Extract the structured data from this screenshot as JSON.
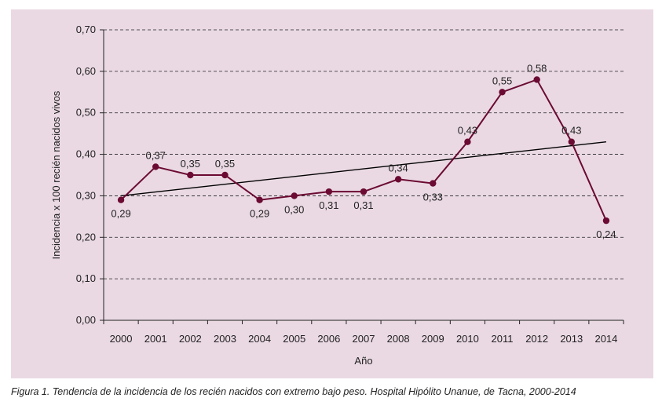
{
  "chart_data": {
    "type": "line",
    "title": "",
    "xlabel": "Año",
    "ylabel": "Incidencia x 100 recién nacidos vivos",
    "x": [
      "2000",
      "2001",
      "2002",
      "2003",
      "2004",
      "2005",
      "2006",
      "2007",
      "2008",
      "2009",
      "2010",
      "2011",
      "2012",
      "2013",
      "2014"
    ],
    "series": [
      {
        "name": "",
        "values": [
          0.29,
          0.37,
          0.35,
          0.35,
          0.29,
          0.3,
          0.31,
          0.31,
          0.34,
          0.33,
          0.43,
          0.55,
          0.58,
          0.43,
          0.24
        ]
      }
    ],
    "data_labels": [
      "0,29",
      "0,37",
      "0,35",
      "0,35",
      "0,29",
      "0,30",
      "0,31",
      "0,31",
      "0,34",
      "0,33",
      "0,43",
      "0,55",
      "0,58",
      "0,43",
      "0,24"
    ],
    "label_position": [
      "below",
      "above",
      "above",
      "above",
      "below",
      "below",
      "below",
      "below",
      "above",
      "below",
      "above",
      "above",
      "above",
      "above",
      "below"
    ],
    "trendline": {
      "start": 0.3,
      "end": 0.43
    },
    "ylim": [
      0,
      0.7
    ],
    "yticks": [
      0,
      0.1,
      0.2,
      0.3,
      0.4,
      0.5,
      0.6,
      0.7
    ],
    "ytick_labels": [
      "0,00",
      "0,10",
      "0,20",
      "0,30",
      "0,40",
      "0,50",
      "0,60",
      "0,70"
    ],
    "grid": "horizontal dashed",
    "colors": {
      "series": "#6b0a33",
      "trendline": "#000000",
      "background": "#ead9e3",
      "grid": "#222222"
    }
  },
  "caption": "Figura 1. Tendencia de la incidencia de los recién nacidos con extremo bajo peso. Hospital Hipólito Unanue, de Tacna, 2000-2014"
}
